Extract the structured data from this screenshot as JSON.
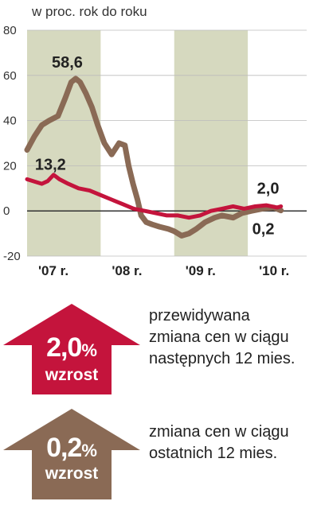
{
  "chart_data": {
    "type": "line",
    "unit_label": "w proc. rok do roku",
    "ylim": [
      -20,
      80
    ],
    "yticks": [
      80,
      60,
      40,
      20,
      0,
      -20
    ],
    "xticks": [
      "'07 r.",
      "'08 r.",
      "'09 r.",
      "'10 r."
    ],
    "x_range": [
      2007.0,
      2010.8
    ],
    "band_color": "#d6d9bf",
    "series": [
      {
        "color": "#8a6a55",
        "values": [
          [
            2007.0,
            27
          ],
          [
            2007.1,
            33
          ],
          [
            2007.2,
            38
          ],
          [
            2007.3,
            40
          ],
          [
            2007.42,
            42
          ],
          [
            2007.52,
            50
          ],
          [
            2007.6,
            57
          ],
          [
            2007.66,
            58.6
          ],
          [
            2007.72,
            57
          ],
          [
            2007.8,
            52
          ],
          [
            2007.88,
            46
          ],
          [
            2007.96,
            38
          ],
          [
            2008.05,
            30
          ],
          [
            2008.15,
            25
          ],
          [
            2008.25,
            30
          ],
          [
            2008.33,
            29
          ],
          [
            2008.38,
            20
          ],
          [
            2008.44,
            12
          ],
          [
            2008.5,
            5
          ],
          [
            2008.55,
            -2
          ],
          [
            2008.62,
            -5
          ],
          [
            2008.7,
            -6
          ],
          [
            2008.8,
            -7
          ],
          [
            2008.92,
            -8
          ],
          [
            2009.0,
            -9
          ],
          [
            2009.1,
            -11
          ],
          [
            2009.2,
            -10
          ],
          [
            2009.3,
            -8
          ],
          [
            2009.42,
            -5
          ],
          [
            2009.55,
            -3
          ],
          [
            2009.65,
            -2
          ],
          [
            2009.8,
            -3
          ],
          [
            2009.92,
            -1
          ],
          [
            2010.05,
            0
          ],
          [
            2010.2,
            1
          ],
          [
            2010.35,
            1.5
          ],
          [
            2010.45,
            0.2
          ]
        ]
      },
      {
        "color": "#c4143c",
        "values": [
          [
            2007.0,
            14
          ],
          [
            2007.1,
            13
          ],
          [
            2007.2,
            12
          ],
          [
            2007.28,
            13.2
          ],
          [
            2007.36,
            16
          ],
          [
            2007.44,
            14
          ],
          [
            2007.56,
            12
          ],
          [
            2007.7,
            10
          ],
          [
            2007.85,
            9
          ],
          [
            2008.0,
            7
          ],
          [
            2008.15,
            5
          ],
          [
            2008.3,
            3
          ],
          [
            2008.45,
            1
          ],
          [
            2008.6,
            0
          ],
          [
            2008.75,
            -1
          ],
          [
            2008.9,
            -2
          ],
          [
            2009.05,
            -2
          ],
          [
            2009.2,
            -3
          ],
          [
            2009.35,
            -2
          ],
          [
            2009.5,
            0
          ],
          [
            2009.65,
            1
          ],
          [
            2009.8,
            2
          ],
          [
            2009.95,
            1
          ],
          [
            2010.1,
            2
          ],
          [
            2010.25,
            2.5
          ],
          [
            2010.4,
            1.5
          ],
          [
            2010.45,
            2.0
          ]
        ]
      }
    ],
    "annotations": [
      "58,6",
      "13,2",
      "2,0",
      "0,2"
    ]
  },
  "legend": [
    {
      "value": "2,0",
      "pct": "%",
      "word": "wzrost",
      "color": "#c4143c",
      "line1": "przewidywana",
      "line2": "zmiana cen w ciągu",
      "line3": "następnych 12 mies."
    },
    {
      "value": "0,2",
      "pct": "%",
      "word": "wzrost",
      "color": "#8a6a55",
      "line1": "zmiana cen w ciągu",
      "line2": "ostatnich 12 mies."
    }
  ]
}
